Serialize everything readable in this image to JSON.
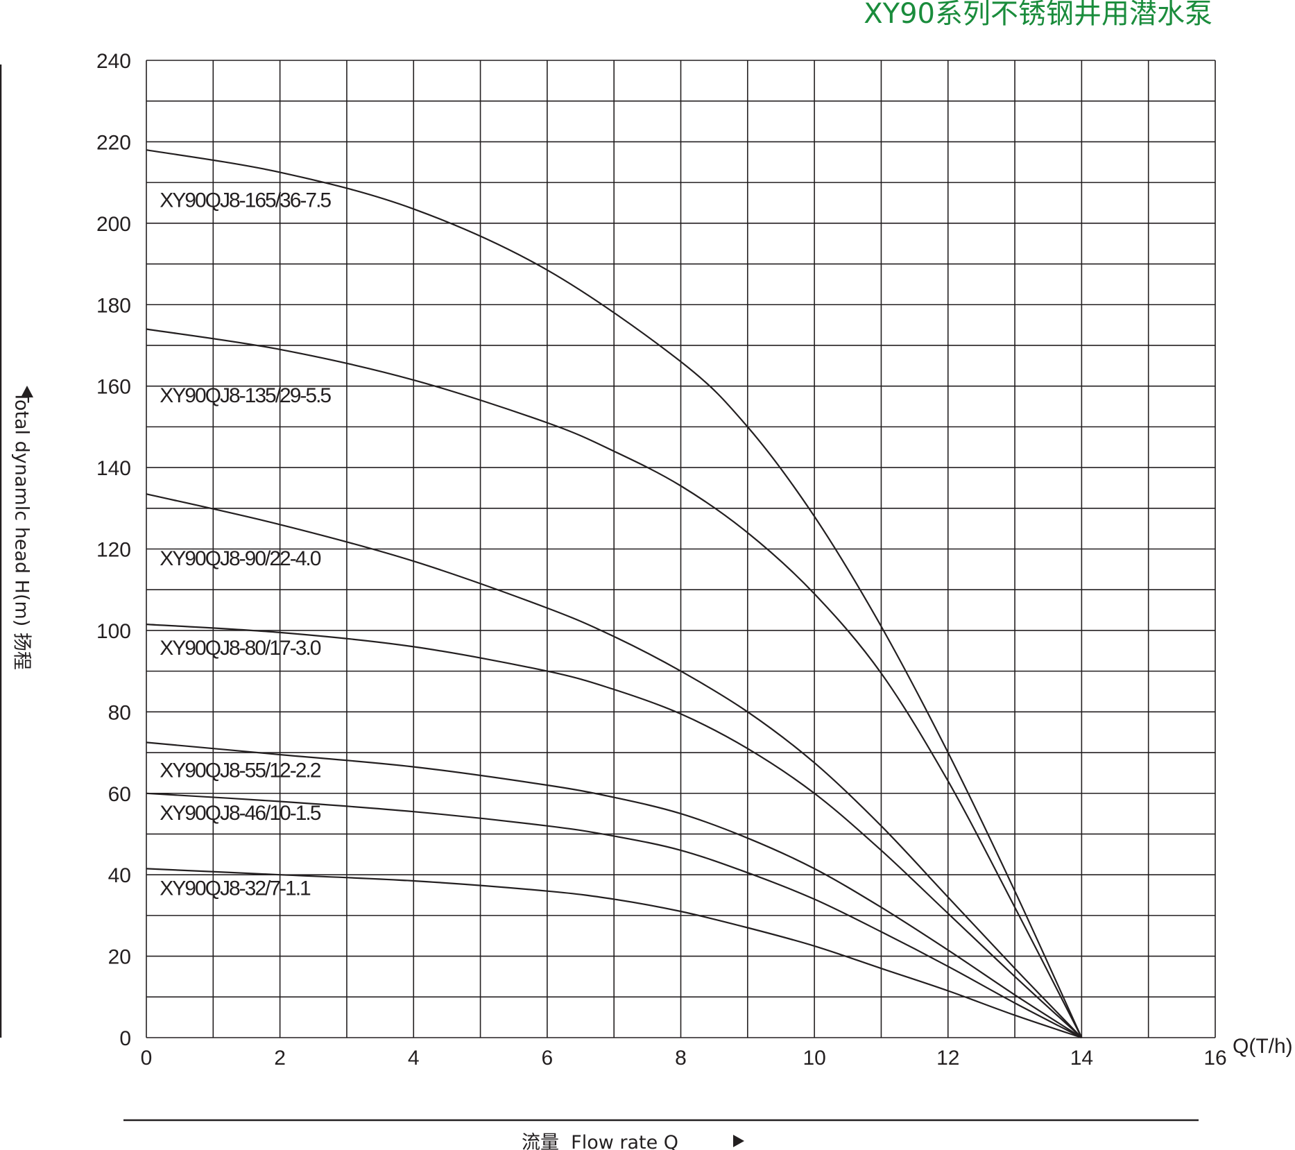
{
  "chart_data": {
    "type": "line",
    "title": "XY90系列不锈钢井用潜水泵",
    "xlabel": "流量  Flow rate Q",
    "xunit": "Q(T/h)",
    "ylabel": "Total dynamlc head H(m) 扬程",
    "xlim": [
      0,
      16
    ],
    "ylim": [
      0,
      240
    ],
    "x_ticks": [
      "0",
      "2",
      "4",
      "6",
      "8",
      "10",
      "12",
      "14",
      "16"
    ],
    "y_ticks": [
      "0",
      "20",
      "40",
      "60",
      "80",
      "100",
      "120",
      "140",
      "160",
      "180",
      "200",
      "220",
      "240"
    ],
    "grid": true,
    "series": [
      {
        "name": "XY90QJ8-165/36-7.5",
        "label_at": [
          0.2,
          204
        ],
        "points": [
          [
            0,
            218
          ],
          [
            2,
            212.5
          ],
          [
            4,
            203.5
          ],
          [
            6,
            188.5
          ],
          [
            8,
            166
          ],
          [
            9,
            150
          ],
          [
            10,
            128
          ],
          [
            11,
            101
          ],
          [
            12,
            70
          ],
          [
            13,
            36
          ],
          [
            14,
            0
          ]
        ]
      },
      {
        "name": "XY90QJ8-135/29-5.5",
        "label_at": [
          0.2,
          156
        ],
        "points": [
          [
            0,
            174
          ],
          [
            2,
            169
          ],
          [
            4,
            161.5
          ],
          [
            6,
            151
          ],
          [
            7,
            144
          ],
          [
            8,
            135.5
          ],
          [
            9,
            124
          ],
          [
            10,
            109
          ],
          [
            11,
            89.5
          ],
          [
            12,
            63
          ],
          [
            13,
            32
          ],
          [
            14,
            0
          ]
        ]
      },
      {
        "name": "XY90QJ8-90/22-4.0",
        "label_at": [
          0.2,
          116
        ],
        "points": [
          [
            0,
            133.5
          ],
          [
            2,
            126
          ],
          [
            4,
            117
          ],
          [
            6,
            105.5
          ],
          [
            7,
            98.5
          ],
          [
            8,
            90
          ],
          [
            9,
            80
          ],
          [
            10,
            67.5
          ],
          [
            11,
            52
          ],
          [
            12,
            34.5
          ],
          [
            13,
            17
          ],
          [
            14,
            0
          ]
        ]
      },
      {
        "name": "XY90QJ8-80/17-3.0",
        "label_at": [
          0.2,
          94
        ],
        "points": [
          [
            0,
            101.5
          ],
          [
            2,
            99.5
          ],
          [
            4,
            96
          ],
          [
            6,
            90
          ],
          [
            7,
            85.5
          ],
          [
            8,
            79.5
          ],
          [
            9,
            71
          ],
          [
            10,
            60
          ],
          [
            11,
            46
          ],
          [
            12,
            30.5
          ],
          [
            13,
            15
          ],
          [
            14,
            0
          ]
        ]
      },
      {
        "name": "XY90QJ8-55/12-2.2",
        "label_at": [
          0.2,
          64
        ],
        "points": [
          [
            0,
            72.5
          ],
          [
            2,
            69.5
          ],
          [
            4,
            66.5
          ],
          [
            6,
            62
          ],
          [
            7,
            59
          ],
          [
            8,
            55
          ],
          [
            9,
            49
          ],
          [
            10,
            41.5
          ],
          [
            11,
            32
          ],
          [
            12,
            21.5
          ],
          [
            13,
            10.5
          ],
          [
            14,
            0
          ]
        ]
      },
      {
        "name": "XY90QJ8-46/10-1.5",
        "label_at": [
          0.2,
          53.5
        ],
        "points": [
          [
            0,
            60
          ],
          [
            2,
            58
          ],
          [
            4,
            55.5
          ],
          [
            6,
            52
          ],
          [
            7,
            49.5
          ],
          [
            8,
            46
          ],
          [
            9,
            40.5
          ],
          [
            10,
            34
          ],
          [
            11,
            26
          ],
          [
            12,
            17.5
          ],
          [
            13,
            8.5
          ],
          [
            14,
            0
          ]
        ]
      },
      {
        "name": "XY90QJ8-32/7-1.1",
        "label_at": [
          0.2,
          35
        ],
        "points": [
          [
            0,
            41.5
          ],
          [
            2,
            40
          ],
          [
            4,
            38.5
          ],
          [
            6,
            36
          ],
          [
            7,
            34
          ],
          [
            8,
            31
          ],
          [
            9,
            27
          ],
          [
            10,
            22.5
          ],
          [
            11,
            17
          ],
          [
            12,
            11.5
          ],
          [
            13,
            5.5
          ],
          [
            14,
            0
          ]
        ]
      }
    ]
  }
}
